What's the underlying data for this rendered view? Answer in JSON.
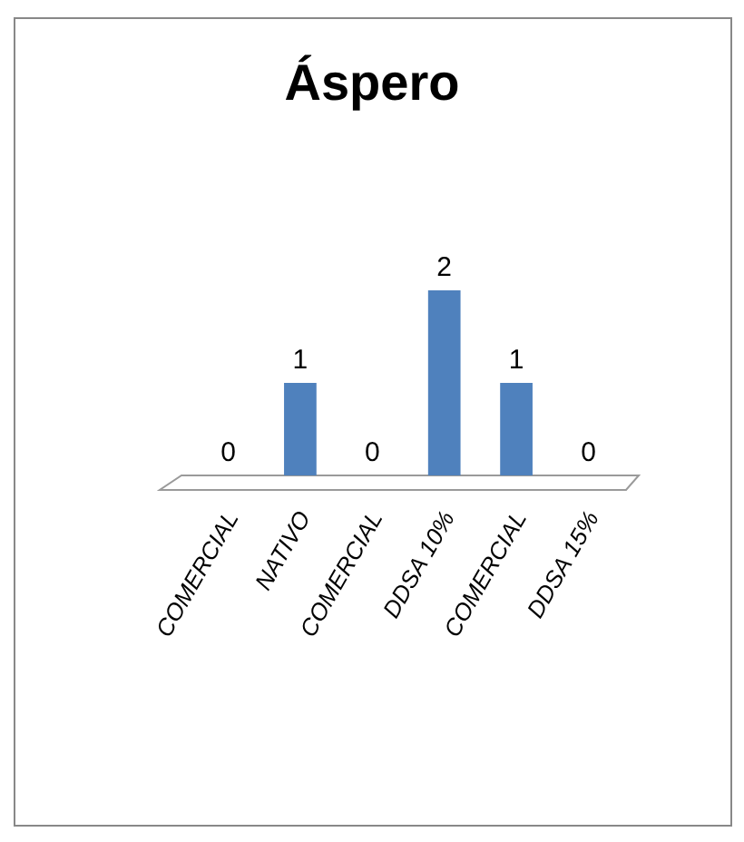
{
  "chart_data": {
    "type": "bar",
    "title": "Áspero",
    "categories": [
      "COMERCIAL",
      "NATIVO",
      "COMERCIAL",
      "DDSA 10%",
      "COMERCIAL",
      "DDSA 15%"
    ],
    "values": [
      0,
      1,
      0,
      2,
      1,
      0
    ],
    "color": "#4f81bd",
    "data_labels": true
  }
}
